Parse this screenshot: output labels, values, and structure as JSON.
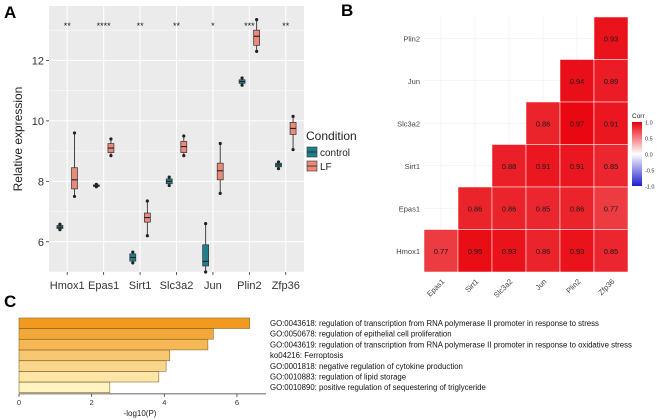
{
  "panel_labels": {
    "a": "A",
    "b": "B",
    "c": "C"
  },
  "colors": {
    "panel_bg": "#ebebeb",
    "grid": "#ffffff",
    "control": "#1f7f8e",
    "lf": "#e98a7a",
    "corr_high": "#e8000a",
    "corr_mid": "#ffffff",
    "corr_low": "#1d1dcc",
    "bar_dark": "#f19a1f",
    "bar_light": "#fff4c2"
  },
  "chart_data": [
    {
      "id": "A",
      "type": "boxplot",
      "ylabel": "Relative expression",
      "ylim": [
        5,
        13.8
      ],
      "yticks": [
        6,
        8,
        10,
        12
      ],
      "ytick_labels": [
        "6",
        "8",
        "10",
        "12"
      ],
      "categories": [
        "Hmox1",
        "Epas1",
        "Sirt1",
        "Slc3a2",
        "Jun",
        "Plin2",
        "Zfp36"
      ],
      "significance": [
        "**",
        "****",
        "**",
        "**",
        "*",
        "***",
        "**"
      ],
      "legend": {
        "title": "Condition",
        "entries": [
          "control",
          "LF"
        ],
        "position": "right"
      },
      "series": [
        {
          "name": "control",
          "boxes": [
            {
              "min": 6.4,
              "q1": 6.44,
              "median": 6.48,
              "q3": 6.54,
              "max": 6.58
            },
            {
              "min": 7.82,
              "q1": 7.84,
              "median": 7.86,
              "q3": 7.88,
              "max": 7.9
            },
            {
              "min": 5.3,
              "q1": 5.36,
              "median": 5.48,
              "q3": 5.6,
              "max": 5.66
            },
            {
              "min": 7.86,
              "q1": 7.92,
              "median": 8.0,
              "q3": 8.08,
              "max": 8.14
            },
            {
              "min": 5.0,
              "q1": 5.2,
              "median": 5.35,
              "q3": 5.9,
              "max": 6.6
            },
            {
              "min": 11.18,
              "q1": 11.24,
              "median": 11.3,
              "q3": 11.36,
              "max": 11.42
            },
            {
              "min": 8.42,
              "q1": 8.48,
              "median": 8.54,
              "q3": 8.6,
              "max": 8.64
            }
          ]
        },
        {
          "name": "LF",
          "boxes": [
            {
              "min": 7.5,
              "q1": 7.75,
              "median": 8.05,
              "q3": 8.45,
              "max": 9.6
            },
            {
              "min": 8.85,
              "q1": 8.95,
              "median": 9.1,
              "q3": 9.25,
              "max": 9.4
            },
            {
              "min": 6.2,
              "q1": 6.65,
              "median": 6.8,
              "q3": 6.95,
              "max": 7.35
            },
            {
              "min": 8.85,
              "q1": 8.95,
              "median": 9.15,
              "q3": 9.32,
              "max": 9.5
            },
            {
              "min": 7.6,
              "q1": 8.05,
              "median": 8.35,
              "q3": 8.6,
              "max": 9.25
            },
            {
              "min": 12.3,
              "q1": 12.5,
              "median": 12.8,
              "q3": 13.0,
              "max": 13.35
            },
            {
              "min": 9.05,
              "q1": 9.55,
              "median": 9.75,
              "q3": 9.95,
              "max": 10.15
            }
          ]
        }
      ]
    },
    {
      "id": "B",
      "type": "heatmap",
      "genes": [
        "Epas1",
        "Sirt1",
        "Slc3a2",
        "Jun",
        "Plin2",
        "Zfp36"
      ],
      "rows": [
        "Plin2",
        "Jun",
        "Slc3a2",
        "Sirt1",
        "Epas1",
        "Hmox1"
      ],
      "columns": [
        "Epas1",
        "Sirt1",
        "Slc3a2",
        "Jun",
        "Plin2",
        "Zfp36"
      ],
      "values": [
        [
          null,
          null,
          null,
          null,
          null,
          0.93
        ],
        [
          null,
          null,
          null,
          null,
          0.94,
          0.89
        ],
        [
          null,
          null,
          null,
          0.86,
          0.97,
          0.91
        ],
        [
          null,
          null,
          0.88,
          0.91,
          0.91,
          0.85
        ],
        [
          null,
          0.86,
          0.86,
          0.85,
          0.86,
          0.77
        ],
        [
          0.77,
          0.95,
          0.93,
          0.86,
          0.93,
          0.85
        ]
      ],
      "legend": {
        "title": "Corr",
        "ticks": [
          1.0,
          0.5,
          0.0,
          -0.5,
          -1.0
        ],
        "tick_labels": [
          "1.0",
          "0.5",
          "0.0",
          "-0.5",
          "-1.0"
        ],
        "position": "right"
      }
    },
    {
      "id": "C",
      "type": "bar",
      "orientation": "horizontal",
      "xlabel": "-log10(P)",
      "xlim": [
        0,
        6.8
      ],
      "xticks": [
        0,
        2,
        4,
        6
      ],
      "xtick_labels": [
        "0",
        "2",
        "4",
        "6"
      ],
      "categories": [
        "GO:0043618: regulation of transcription from RNA polymerase II promoter in response to stress",
        "GO:0050678: regulation of epithelial cell proliferation",
        "GO:0043619: regulation of transcription from RNA polymerase II promoter in response to oxidative stress",
        "ko04216: Ferroptosis",
        "GO:0001818: negative regulation of cytokine production",
        "GO:0010883: regulation of lipid storage",
        "GO:0010890: positive regulation of sequestering of triglyceride"
      ],
      "values": [
        6.35,
        5.35,
        5.2,
        4.15,
        4.05,
        3.85,
        2.5
      ]
    }
  ]
}
